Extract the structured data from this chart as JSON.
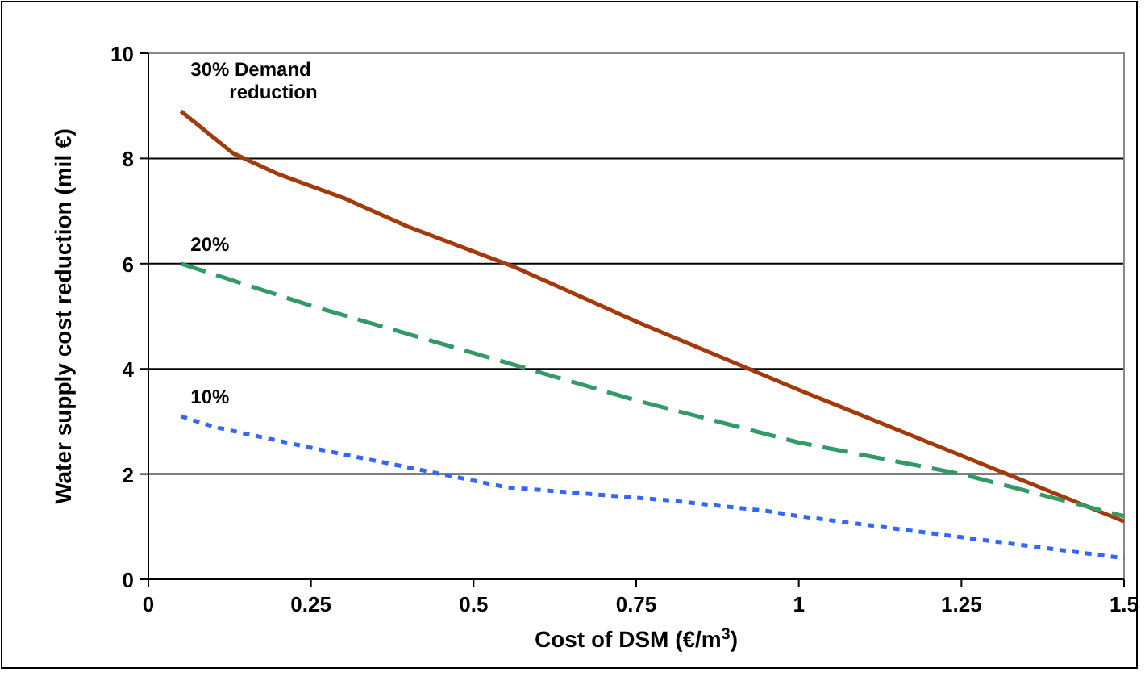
{
  "chart_data": {
    "type": "line",
    "xlabel": "Cost of DSM (€/m$^{3}$)",
    "ylabel": "Water supply cost reduction (mil €)",
    "xlim": [
      0,
      1.5
    ],
    "ylim": [
      0,
      10
    ],
    "xticks": [
      0,
      0.25,
      0.5,
      0.75,
      1,
      1.25,
      1.5
    ],
    "yticks": [
      0,
      2,
      4,
      6,
      8,
      10
    ],
    "grid": "y",
    "series": [
      {
        "name": "30% Demand reduction",
        "color": "#a33a0c",
        "line_style": "solid",
        "x": [
          0.05,
          0.1,
          0.13,
          0.2,
          0.3,
          0.4,
          0.56,
          0.75,
          1.0,
          1.25,
          1.5
        ],
        "values": [
          8.9,
          8.4,
          8.1,
          7.7,
          7.25,
          6.7,
          5.95,
          4.9,
          3.6,
          2.35,
          1.1
        ]
      },
      {
        "name": "20%",
        "color": "#339966",
        "line_style": "dashed",
        "x": [
          0.05,
          0.25,
          0.5,
          0.75,
          1.0,
          1.25,
          1.5
        ],
        "values": [
          6.0,
          5.2,
          4.3,
          3.4,
          2.6,
          2.0,
          1.2
        ]
      },
      {
        "name": "10%",
        "color": "#3366ff",
        "line_style": "dotted",
        "x": [
          0.05,
          0.1,
          0.25,
          0.45,
          0.55,
          0.8,
          0.95,
          1.0,
          1.25,
          1.5
        ],
        "values": [
          3.1,
          2.9,
          2.5,
          2.0,
          1.75,
          1.5,
          1.3,
          1.2,
          0.8,
          0.4
        ]
      }
    ]
  }
}
